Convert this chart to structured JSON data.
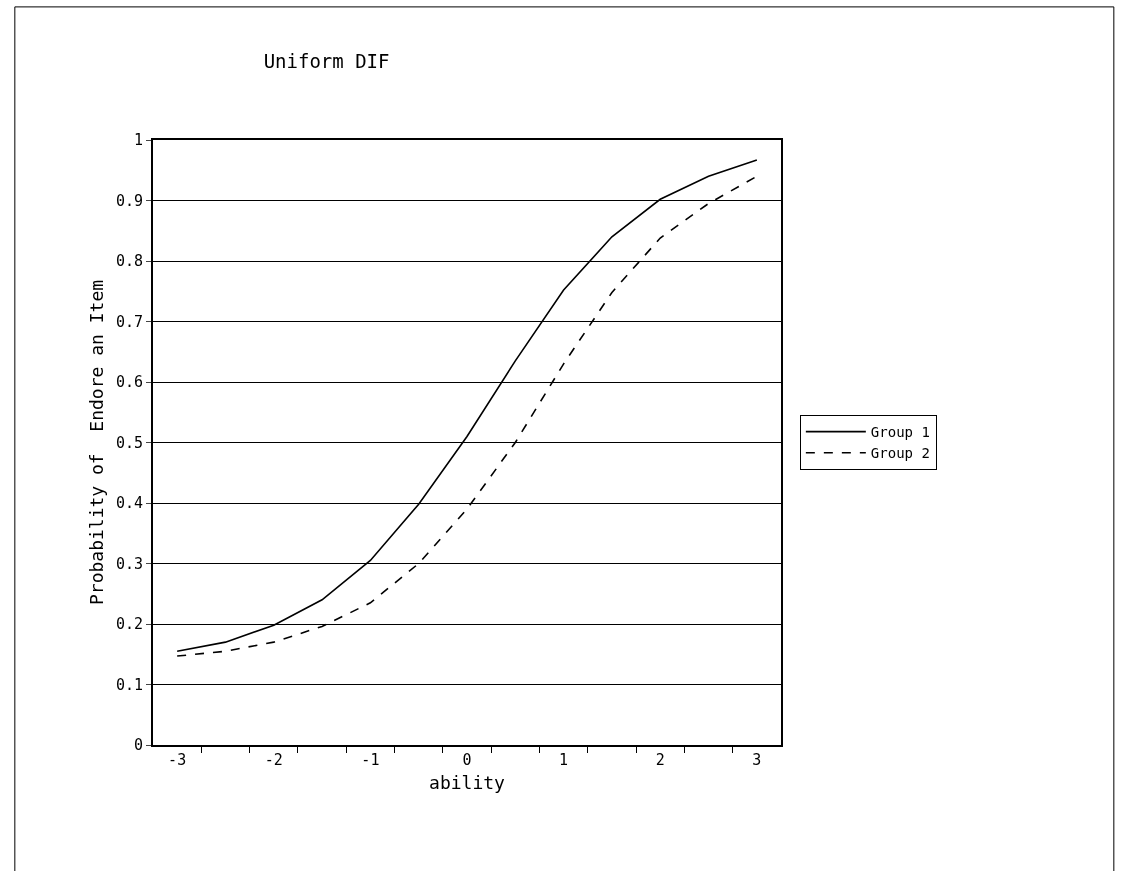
{
  "chart_data": {
    "type": "line",
    "title": "Uniform DIF",
    "xlabel": "ability",
    "ylabel": "Probability of  Endore an Item",
    "categories": [
      "-3",
      null,
      "-2",
      null,
      "-1",
      null,
      "0",
      null,
      "1",
      null,
      "2",
      null,
      "3"
    ],
    "series": [
      {
        "name": "Group 1",
        "color": "#000000",
        "line_style": "solid",
        "values": [
          0.155,
          0.17,
          0.198,
          0.24,
          0.305,
          0.398,
          0.51,
          0.635,
          0.752,
          0.84,
          0.902,
          0.94,
          0.967
        ]
      },
      {
        "name": "Group 2",
        "color": "#000000",
        "line_style": "dashed",
        "values": [
          0.147,
          0.155,
          0.17,
          0.196,
          0.235,
          0.3,
          0.39,
          0.5,
          0.63,
          0.748,
          0.838,
          0.895,
          0.94
        ]
      }
    ],
    "ylim": [
      0,
      1
    ],
    "yticks": [
      0,
      0.1,
      0.2,
      0.3,
      0.4,
      0.5,
      0.6,
      0.7,
      0.8,
      0.9,
      1
    ],
    "grid": "y",
    "legend": "right",
    "marker": "none"
  }
}
